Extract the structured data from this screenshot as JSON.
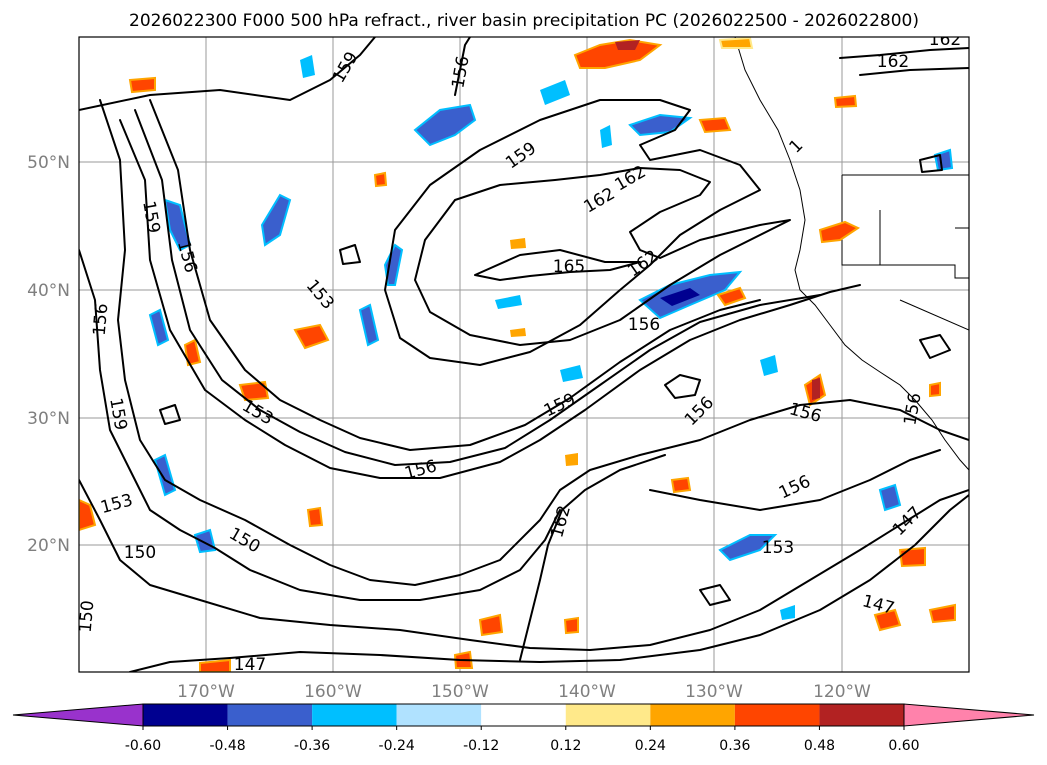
{
  "title": "2026022300 F000 500 hPa refract., river basin precipitation PC (2026022500 - 2026022800)",
  "lat_labels": [
    "50°N",
    "40°N",
    "30°N",
    "20°N"
  ],
  "lon_labels": [
    "170°W",
    "160°W",
    "150°W",
    "140°W",
    "130°W",
    "120°W"
  ],
  "contour_labels": {
    "c162_tr": "162",
    "c162_tr2": "162",
    "c156_top": "156",
    "c159_tl": "159",
    "c159_mid": "159",
    "c162_mid": "162",
    "c162_mid2": "162",
    "c165": "165",
    "c162_jet": "162",
    "c156_jet": "156",
    "c159_left": "159",
    "c156_left": "156",
    "c156_left2": "156",
    "c153_a": "153",
    "c159_low": "159",
    "c153_b": "153",
    "c159_jet2": "159",
    "c156_b": "156",
    "c156_c": "156",
    "c156_d": "156",
    "c156_e": "156",
    "c153_c": "153",
    "c150_a": "150",
    "c150_b": "150",
    "c162_s": "162",
    "c153_d": "153",
    "c147_a": "147",
    "c147_b": "147",
    "c147_c": "147",
    "c152_r": "156",
    "c150_l": "150",
    "c1_ne": "1"
  },
  "colorbar": {
    "ticks": [
      "-0.60",
      "-0.48",
      "-0.36",
      "-0.24",
      "-0.12",
      "0.12",
      "0.24",
      "0.36",
      "0.48",
      "0.60"
    ],
    "levels": [
      -0.6,
      -0.48,
      -0.36,
      -0.24,
      -0.12,
      0.12,
      0.24,
      0.36,
      0.48,
      0.6
    ],
    "colors": [
      "#9932cc",
      "#000090",
      "#3a5fcd",
      "#00bfff",
      "#b0e2ff",
      "#ffffff",
      "#ffe98a",
      "#ffa500",
      "#ff4500",
      "#b22222",
      "#ff82ab"
    ]
  },
  "colors": {
    "negative_strong": "#3a5fcd",
    "negative_light": "#00bfff",
    "positive": "#ffa500",
    "positive_strong": "#ff4500"
  }
}
